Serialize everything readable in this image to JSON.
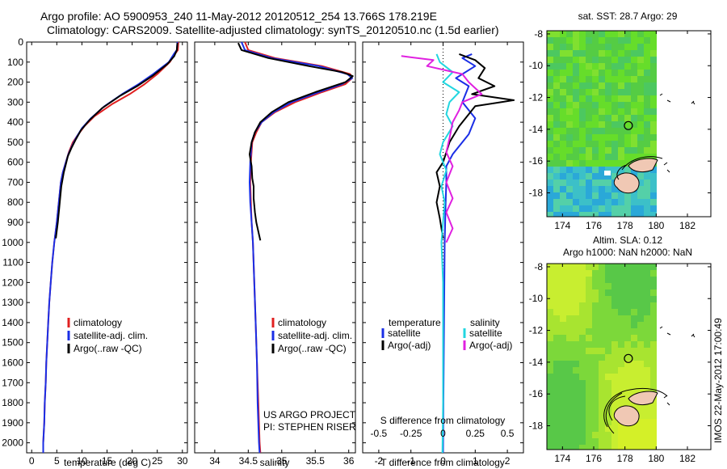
{
  "header": {
    "title_line1": "Argo profile: AO 5900953_240 11-May-2012 20120512_254 13.766S 178.219E",
    "title_line2": "Climatology: CARS2009. Satellite-adjusted climatology: synTS_20120510.nc (1.5d earlier)"
  },
  "credits": {
    "line1": "US ARGO PROJECT",
    "line2": "PI: STEPHEN RISER"
  },
  "side_stamp": "IMOS 22-May-2012 17:00:49",
  "colors": {
    "climatology": "#e02020",
    "satellite": "#1a2ee6",
    "argo": "#000000",
    "sat_salinity": "#22d6e0",
    "argo_salinity": "#e020e0"
  },
  "chart_data": [
    {
      "type": "line",
      "id": "temperature",
      "xlabel": "temperature (deg C)",
      "xlim": [
        -1,
        31
      ],
      "xticks": [
        0,
        5,
        10,
        15,
        20,
        25,
        30
      ],
      "ylabel": "",
      "ylim": [
        0,
        2050
      ],
      "yticks": [
        0,
        100,
        200,
        300,
        400,
        500,
        600,
        700,
        800,
        900,
        1000,
        1100,
        1200,
        1300,
        1400,
        1500,
        1600,
        1700,
        1800,
        1900,
        2000
      ],
      "legend": [
        "climatology",
        "satellite-adj. clim.",
        "Argo(..raw -QC)"
      ],
      "series": [
        {
          "name": "climatology",
          "color_key": "climatology",
          "points": [
            [
              29.2,
              0
            ],
            [
              29.1,
              40
            ],
            [
              28.5,
              60
            ],
            [
              27.5,
              100
            ],
            [
              25.0,
              160
            ],
            [
              22.5,
              210
            ],
            [
              19.5,
              260
            ],
            [
              16.0,
              310
            ],
            [
              12.5,
              370
            ],
            [
              10.5,
              420
            ],
            [
              9.0,
              470
            ],
            [
              8.2,
              500
            ],
            [
              7.4,
              550
            ],
            [
              6.8,
              600
            ],
            [
              6.2,
              650
            ],
            [
              5.8,
              700
            ],
            [
              5.4,
              800
            ],
            [
              5.0,
              900
            ],
            [
              4.5,
              1000
            ],
            [
              4.1,
              1100
            ],
            [
              3.8,
              1200
            ],
            [
              3.5,
              1300
            ],
            [
              3.3,
              1400
            ],
            [
              3.1,
              1500
            ],
            [
              2.9,
              1600
            ],
            [
              2.8,
              1700
            ],
            [
              2.6,
              1800
            ],
            [
              2.5,
              1900
            ],
            [
              2.3,
              2000
            ],
            [
              2.3,
              2050
            ]
          ]
        },
        {
          "name": "satellite",
          "color_key": "satellite",
          "points": [
            [
              29.0,
              0
            ],
            [
              28.9,
              40
            ],
            [
              28.3,
              60
            ],
            [
              27.3,
              100
            ],
            [
              24.2,
              160
            ],
            [
              21.3,
              210
            ],
            [
              18.0,
              260
            ],
            [
              14.5,
              320
            ],
            [
              11.8,
              380
            ],
            [
              10.0,
              430
            ],
            [
              8.8,
              480
            ],
            [
              8.0,
              520
            ],
            [
              7.3,
              560
            ],
            [
              6.8,
              600
            ],
            [
              6.2,
              650
            ],
            [
              5.8,
              700
            ],
            [
              5.4,
              800
            ],
            [
              5.0,
              900
            ],
            [
              4.5,
              1000
            ],
            [
              4.1,
              1100
            ],
            [
              3.8,
              1200
            ],
            [
              3.5,
              1300
            ],
            [
              3.3,
              1400
            ],
            [
              3.1,
              1500
            ],
            [
              2.9,
              1600
            ],
            [
              2.8,
              1700
            ],
            [
              2.6,
              1800
            ],
            [
              2.5,
              1900
            ],
            [
              2.3,
              2000
            ],
            [
              2.3,
              2050
            ]
          ]
        },
        {
          "name": "argo",
          "color_key": "argo",
          "points": [
            [
              29.0,
              5
            ],
            [
              28.9,
              40
            ],
            [
              28.4,
              70
            ],
            [
              27.0,
              110
            ],
            [
              24.0,
              170
            ],
            [
              21.0,
              220
            ],
            [
              17.5,
              270
            ],
            [
              14.0,
              330
            ],
            [
              11.5,
              390
            ],
            [
              9.8,
              440
            ],
            [
              8.7,
              490
            ],
            [
              7.9,
              530
            ],
            [
              7.2,
              570
            ],
            [
              6.8,
              610
            ],
            [
              6.4,
              650
            ],
            [
              5.9,
              720
            ],
            [
              5.6,
              800
            ],
            [
              5.2,
              900
            ],
            [
              4.8,
              980
            ]
          ]
        }
      ]
    },
    {
      "type": "line",
      "id": "salinity",
      "xlabel": "salinity",
      "xlim": [
        33.7,
        36.1
      ],
      "xticks": [
        34,
        34.5,
        35,
        35.5,
        36
      ],
      "ylabel": "",
      "ylim": [
        0,
        2050
      ],
      "legend": [
        "climatology",
        "satellite-adj. clim.",
        "Argo(..raw -QC)"
      ],
      "series": [
        {
          "name": "climatology",
          "color_key": "climatology",
          "points": [
            [
              34.45,
              0
            ],
            [
              34.5,
              40
            ],
            [
              34.9,
              80
            ],
            [
              35.6,
              120
            ],
            [
              36.02,
              160
            ],
            [
              36.05,
              180
            ],
            [
              35.95,
              210
            ],
            [
              35.6,
              250
            ],
            [
              35.2,
              300
            ],
            [
              34.9,
              350
            ],
            [
              34.7,
              400
            ],
            [
              34.62,
              450
            ],
            [
              34.56,
              500
            ],
            [
              34.54,
              600
            ],
            [
              34.53,
              700
            ],
            [
              34.54,
              800
            ],
            [
              34.55,
              900
            ],
            [
              34.57,
              1000
            ],
            [
              34.59,
              1200
            ],
            [
              34.61,
              1400
            ],
            [
              34.63,
              1600
            ],
            [
              34.65,
              1800
            ],
            [
              34.67,
              2000
            ],
            [
              34.68,
              2050
            ]
          ]
        },
        {
          "name": "satellite",
          "color_key": "satellite",
          "points": [
            [
              34.4,
              0
            ],
            [
              34.45,
              40
            ],
            [
              34.85,
              80
            ],
            [
              35.55,
              120
            ],
            [
              35.98,
              160
            ],
            [
              36.05,
              180
            ],
            [
              35.9,
              210
            ],
            [
              35.55,
              250
            ],
            [
              35.15,
              300
            ],
            [
              34.88,
              350
            ],
            [
              34.7,
              400
            ],
            [
              34.6,
              450
            ],
            [
              34.55,
              500
            ],
            [
              34.53,
              600
            ],
            [
              34.52,
              700
            ],
            [
              34.53,
              800
            ],
            [
              34.55,
              900
            ],
            [
              34.57,
              1000
            ],
            [
              34.59,
              1200
            ],
            [
              34.61,
              1400
            ],
            [
              34.63,
              1600
            ],
            [
              34.64,
              1800
            ],
            [
              34.66,
              2000
            ],
            [
              34.67,
              2050
            ]
          ]
        },
        {
          "name": "argo",
          "color_key": "argo",
          "points": [
            [
              34.35,
              5
            ],
            [
              34.4,
              40
            ],
            [
              34.8,
              80
            ],
            [
              35.4,
              120
            ],
            [
              35.9,
              150
            ],
            [
              36.06,
              170
            ],
            [
              35.95,
              200
            ],
            [
              35.5,
              250
            ],
            [
              35.1,
              300
            ],
            [
              34.85,
              350
            ],
            [
              34.68,
              400
            ],
            [
              34.6,
              450
            ],
            [
              34.55,
              500
            ],
            [
              34.52,
              560
            ],
            [
              34.55,
              620
            ],
            [
              34.56,
              680
            ],
            [
              34.58,
              720
            ],
            [
              34.58,
              780
            ],
            [
              34.6,
              850
            ],
            [
              34.62,
              900
            ],
            [
              34.66,
              960
            ],
            [
              34.68,
              990
            ]
          ]
        }
      ]
    },
    {
      "type": "line",
      "id": "difference",
      "xlabel": "T difference from climatology",
      "xlabel_top": "S difference from climatology",
      "xlim": [
        -2.5,
        2.5
      ],
      "xticks_T": [
        -2,
        -1,
        0,
        1,
        2
      ],
      "xticks_S_labels": [
        "-0.5",
        "-0.25",
        "0",
        "0.25",
        "0.5"
      ],
      "xticks_S_pos": [
        -2,
        -1,
        0,
        1,
        2
      ],
      "ylim": [
        0,
        2050
      ],
      "legend_heads": [
        "temperature",
        "salinity"
      ],
      "legend": [
        "satellite",
        "Argo(-adj)",
        "satellite",
        "Argo(-adj)"
      ],
      "series": [
        {
          "name": "T satellite",
          "color_key": "satellite",
          "points": [
            [
              0.9,
              60
            ],
            [
              0.6,
              80
            ],
            [
              1.0,
              120
            ],
            [
              0.4,
              180
            ],
            [
              0.8,
              220
            ],
            [
              0.6,
              300
            ],
            [
              1.0,
              380
            ],
            [
              0.8,
              460
            ],
            [
              0.3,
              560
            ],
            [
              0.1,
              620
            ],
            [
              0.1,
              700
            ],
            [
              0.08,
              800
            ],
            [
              0.05,
              1000
            ],
            [
              0.04,
              1200
            ],
            [
              0.03,
              1400
            ],
            [
              0.02,
              1600
            ],
            [
              0.01,
              1800
            ],
            [
              0.0,
              2050
            ]
          ]
        },
        {
          "name": "T argo",
          "color_key": "argo",
          "points": [
            [
              0.5,
              60
            ],
            [
              1.0,
              90
            ],
            [
              1.3,
              130
            ],
            [
              1.1,
              180
            ],
            [
              1.6,
              220
            ],
            [
              0.9,
              260
            ],
            [
              2.2,
              290
            ],
            [
              1.0,
              320
            ],
            [
              0.8,
              360
            ],
            [
              0.5,
              420
            ],
            [
              0.2,
              500
            ],
            [
              0.0,
              600
            ],
            [
              -0.2,
              650
            ],
            [
              -0.1,
              720
            ],
            [
              -0.2,
              800
            ],
            [
              -0.1,
              880
            ],
            [
              0.0,
              980
            ]
          ]
        },
        {
          "name": "S satellite",
          "color_key": "sat_salinity",
          "points": [
            [
              -0.2,
              60
            ],
            [
              -0.1,
              100
            ],
            [
              0.3,
              150
            ],
            [
              0.0,
              200
            ],
            [
              0.5,
              250
            ],
            [
              0.2,
              300
            ],
            [
              0.1,
              360
            ],
            [
              0.3,
              420
            ],
            [
              0.0,
              500
            ],
            [
              -0.1,
              560
            ],
            [
              0.1,
              640
            ],
            [
              -0.05,
              720
            ],
            [
              0.05,
              800
            ],
            [
              0.0,
              900
            ],
            [
              -0.05,
              1000
            ],
            [
              0.0,
              1200
            ],
            [
              0.0,
              1500
            ],
            [
              0.0,
              1800
            ],
            [
              -0.02,
              2050
            ]
          ]
        },
        {
          "name": "S argo",
          "color_key": "argo_salinity",
          "points": [
            [
              -1.3,
              70
            ],
            [
              -0.3,
              90
            ],
            [
              -0.5,
              120
            ],
            [
              0.6,
              160
            ],
            [
              0.8,
              200
            ],
            [
              1.2,
              260
            ],
            [
              0.6,
              300
            ],
            [
              0.5,
              340
            ],
            [
              0.3,
              400
            ],
            [
              0.2,
              480
            ],
            [
              0.1,
              550
            ],
            [
              0.3,
              620
            ],
            [
              0.1,
              700
            ],
            [
              0.3,
              780
            ],
            [
              0.1,
              850
            ],
            [
              0.3,
              930
            ],
            [
              0.1,
              1000
            ]
          ]
        }
      ]
    },
    {
      "type": "heatmap",
      "id": "sst_map",
      "title": "sat. SST: 28.7  Argo: 29",
      "xlim": [
        173,
        183.5
      ],
      "ylim": [
        -19.5,
        -7.8
      ],
      "xticks": [
        174,
        176,
        178,
        180,
        182
      ],
      "yticks": [
        -8,
        -10,
        -12,
        -14,
        -16,
        -18
      ],
      "data_east_limit": 180,
      "argo_position": [
        178.219,
        -13.766
      ]
    },
    {
      "type": "heatmap",
      "id": "sla_map",
      "title_line1": "Altim. SLA: 0.12",
      "title_line2": "Argo h1000: NaN h2000: NaN",
      "xlim": [
        173,
        183.5
      ],
      "ylim": [
        -19.5,
        -7.8
      ],
      "xticks": [
        174,
        176,
        178,
        180,
        182
      ],
      "yticks": [
        -8,
        -10,
        -12,
        -14,
        -16,
        -18
      ],
      "data_east_limit": 180,
      "argo_position": [
        178.219,
        -13.766
      ]
    }
  ]
}
